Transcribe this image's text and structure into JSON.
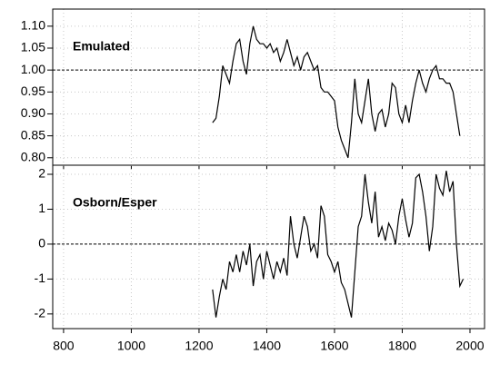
{
  "chart_data": [
    {
      "type": "line",
      "title": "Emulated",
      "x": [
        1240,
        1250,
        1260,
        1270,
        1280,
        1290,
        1300,
        1310,
        1320,
        1330,
        1340,
        1350,
        1360,
        1370,
        1380,
        1390,
        1400,
        1410,
        1420,
        1430,
        1440,
        1450,
        1460,
        1470,
        1480,
        1490,
        1500,
        1510,
        1520,
        1530,
        1540,
        1550,
        1560,
        1570,
        1580,
        1590,
        1600,
        1610,
        1620,
        1630,
        1640,
        1650,
        1660,
        1670,
        1680,
        1690,
        1700,
        1710,
        1720,
        1730,
        1740,
        1750,
        1760,
        1770,
        1780,
        1790,
        1800,
        1810,
        1820,
        1830,
        1840,
        1850,
        1860,
        1870,
        1880,
        1890,
        1900,
        1910,
        1920,
        1930,
        1940,
        1950,
        1960,
        1970
      ],
      "series": [
        {
          "color": "#000000",
          "values": [
            0.88,
            0.89,
            0.94,
            1.01,
            0.99,
            0.97,
            1.02,
            1.06,
            1.07,
            1.02,
            0.99,
            1.06,
            1.1,
            1.07,
            1.06,
            1.06,
            1.05,
            1.06,
            1.04,
            1.05,
            1.02,
            1.04,
            1.07,
            1.04,
            1.01,
            1.03,
            1.0,
            1.03,
            1.04,
            1.02,
            1.0,
            1.01,
            0.96,
            0.95,
            0.95,
            0.94,
            0.93,
            0.87,
            0.84,
            0.82,
            0.8,
            0.88,
            0.98,
            0.9,
            0.88,
            0.93,
            0.98,
            0.9,
            0.86,
            0.9,
            0.91,
            0.87,
            0.9,
            0.97,
            0.96,
            0.9,
            0.88,
            0.92,
            0.88,
            0.93,
            0.97,
            1.0,
            0.97,
            0.95,
            0.98,
            1.0,
            1.01,
            0.98,
            0.98,
            0.97,
            0.97,
            0.95,
            0.9,
            0.85
          ]
        }
      ],
      "xlim": [
        768,
        2043
      ],
      "xticks": [
        800,
        1000,
        1200,
        1400,
        1600,
        1800,
        2000
      ],
      "ylim": [
        0.783,
        1.139
      ],
      "yticks": [
        {
          "value": 0.8,
          "label": "0.80"
        },
        0.85,
        {
          "value": 0.9,
          "label": "0.90"
        },
        0.95,
        {
          "value": 1.0,
          "label": "1.00"
        },
        1.05,
        {
          "value": 1.1,
          "label": "1.10"
        }
      ],
      "hline": 1,
      "grid": true
    },
    {
      "type": "line",
      "title": "Osborn/Esper",
      "x": [
        1240,
        1250,
        1260,
        1270,
        1280,
        1290,
        1300,
        1310,
        1320,
        1330,
        1340,
        1350,
        1360,
        1370,
        1380,
        1390,
        1400,
        1410,
        1420,
        1430,
        1440,
        1450,
        1460,
        1470,
        1480,
        1490,
        1500,
        1510,
        1520,
        1530,
        1540,
        1550,
        1560,
        1570,
        1580,
        1590,
        1600,
        1610,
        1620,
        1630,
        1640,
        1650,
        1660,
        1670,
        1680,
        1690,
        1700,
        1710,
        1720,
        1730,
        1740,
        1750,
        1760,
        1770,
        1780,
        1790,
        1800,
        1810,
        1820,
        1830,
        1840,
        1850,
        1860,
        1870,
        1880,
        1890,
        1900,
        1910,
        1920,
        1930,
        1940,
        1950,
        1960,
        1970,
        1980
      ],
      "series": [
        {
          "color": "#000000",
          "values": [
            -1.3,
            -2.1,
            -1.5,
            -1.0,
            -1.3,
            -0.5,
            -0.8,
            -0.3,
            -0.8,
            -0.2,
            -0.6,
            0.0,
            -1.2,
            -0.5,
            -0.3,
            -1.0,
            -0.2,
            -0.6,
            -1.0,
            -0.5,
            -0.8,
            -0.4,
            -0.9,
            0.8,
            0.0,
            -0.4,
            0.2,
            0.8,
            0.5,
            -0.2,
            0.0,
            -0.4,
            1.1,
            0.8,
            -0.3,
            -0.5,
            -0.8,
            -0.5,
            -1.1,
            -1.3,
            -1.7,
            -2.1,
            -0.8,
            0.5,
            0.8,
            2.0,
            1.2,
            0.6,
            1.5,
            0.2,
            0.5,
            0.1,
            0.6,
            0.4,
            0.0,
            0.8,
            1.3,
            0.7,
            0.2,
            0.6,
            1.9,
            2.0,
            1.5,
            0.8,
            -0.2,
            0.5,
            2.0,
            1.6,
            1.4,
            2.1,
            1.5,
            1.8,
            0.0,
            -1.2,
            -1.0
          ]
        }
      ],
      "xlim": [
        768,
        2043
      ],
      "xticks": [
        800,
        1000,
        1200,
        1400,
        1600,
        1800,
        2000
      ],
      "ylim": [
        -2.42,
        2.26
      ],
      "yticks": [
        -2,
        -1,
        0,
        1,
        2
      ],
      "hline": 0,
      "grid": true
    }
  ]
}
